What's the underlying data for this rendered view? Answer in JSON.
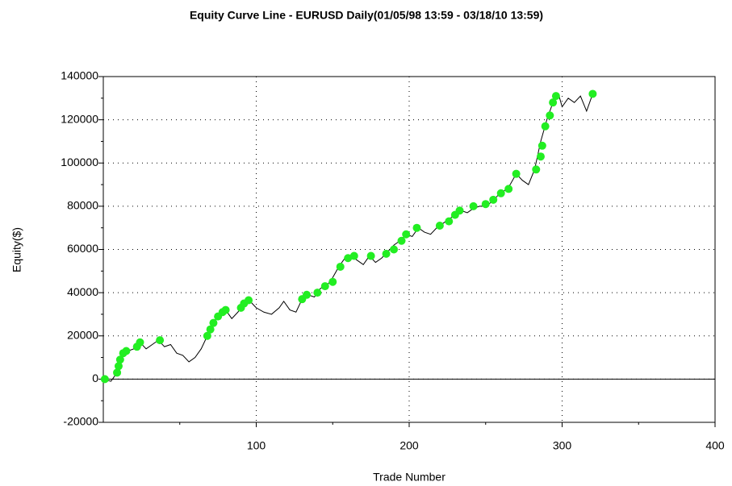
{
  "chart_data": {
    "type": "line",
    "title": "Equity Curve Line - EURUSD Daily(01/05/98 13:59 - 03/18/10 13:59)",
    "xlabel": "Trade Number",
    "ylabel": "Equity($)",
    "xlim": [
      0,
      400
    ],
    "ylim": [
      -20000,
      140000
    ],
    "xticks": [
      100,
      200,
      300,
      400
    ],
    "yticks": [
      -20000,
      0,
      20000,
      40000,
      60000,
      80000,
      100000,
      120000,
      140000
    ],
    "xminorticks": [
      50,
      150,
      250,
      350
    ],
    "yminorticks": [
      -10000,
      10000,
      30000,
      50000,
      70000,
      90000,
      110000,
      130000
    ],
    "grid": true,
    "series": [
      {
        "type": "line",
        "color": "#000000",
        "x": [
          0,
          5,
          8,
          10,
          13,
          16,
          20,
          24,
          28,
          32,
          36,
          40,
          44,
          48,
          52,
          56,
          60,
          64,
          68,
          72,
          76,
          80,
          84,
          88,
          92,
          96,
          100,
          105,
          110,
          115,
          118,
          122,
          126,
          130,
          134,
          138,
          142,
          146,
          150,
          154,
          158,
          162,
          166,
          170,
          174,
          178,
          182,
          186,
          190,
          194,
          198,
          202,
          206,
          210,
          214,
          218,
          222,
          226,
          230,
          234,
          238,
          242,
          246,
          250,
          254,
          258,
          262,
          266,
          270,
          274,
          278,
          282,
          286,
          290,
          294,
          298,
          300,
          304,
          308,
          312,
          316,
          320
        ],
        "values": [
          0,
          -1000,
          2000,
          8000,
          12000,
          13000,
          14000,
          17000,
          14000,
          16000,
          18000,
          15000,
          16000,
          12000,
          11000,
          8000,
          10000,
          14000,
          20000,
          26000,
          31000,
          32000,
          28000,
          31000,
          35000,
          36000,
          33000,
          31000,
          30000,
          33000,
          36000,
          32000,
          31000,
          37000,
          39000,
          38000,
          42000,
          43000,
          47000,
          52000,
          56000,
          57000,
          55000,
          53000,
          57000,
          54000,
          56000,
          59000,
          62000,
          64000,
          67000,
          66000,
          70000,
          68000,
          67000,
          70000,
          72000,
          74000,
          76000,
          78000,
          77000,
          79000,
          80000,
          80000,
          82000,
          85000,
          87000,
          90000,
          95000,
          92000,
          90000,
          97000,
          110000,
          120000,
          128000,
          131000,
          126000,
          130000,
          128000,
          131000,
          124000,
          132000
        ]
      },
      {
        "type": "scatter",
        "color": "#22ee22",
        "x": [
          1,
          9,
          10,
          11,
          13,
          15,
          22,
          24,
          37,
          68,
          70,
          72,
          75,
          78,
          80,
          90,
          92,
          95,
          130,
          133,
          140,
          145,
          150,
          155,
          160,
          164,
          175,
          185,
          190,
          195,
          198,
          205,
          220,
          226,
          230,
          233,
          242,
          250,
          255,
          260,
          265,
          270,
          283,
          286,
          287,
          289,
          292,
          294,
          296,
          320
        ],
        "values": [
          0,
          3000,
          6000,
          9000,
          12000,
          13000,
          15000,
          17000,
          18000,
          20000,
          23000,
          26000,
          29000,
          31000,
          32000,
          33000,
          35000,
          36500,
          37000,
          39000,
          40000,
          43000,
          45000,
          52000,
          56000,
          57000,
          57000,
          58000,
          60000,
          64000,
          67000,
          70000,
          71000,
          73000,
          76000,
          78000,
          80000,
          81000,
          83000,
          86000,
          88000,
          95000,
          97000,
          103000,
          108000,
          117000,
          122000,
          128000,
          131000,
          132000
        ]
      }
    ]
  }
}
